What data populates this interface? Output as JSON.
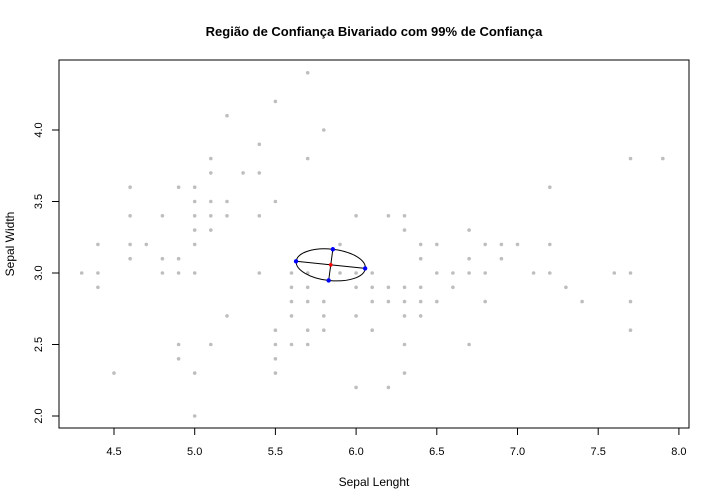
{
  "chart_data": {
    "type": "scatter",
    "title": "Região de Confiança Bivariado com 99% de Confiança",
    "xlabel": "Sepal Lenght",
    "ylabel": "Sepal Width",
    "xlim": [
      4.3,
      7.9
    ],
    "ylim": [
      2.0,
      4.4
    ],
    "xticks": [
      "4.5",
      "5.0",
      "5.5",
      "6.0",
      "6.5",
      "7.0",
      "7.5",
      "8.0"
    ],
    "yticks": [
      "2.0",
      "2.5",
      "3.0",
      "3.5",
      "4.0"
    ],
    "grid": false,
    "colors": {
      "points": "#bebebe",
      "ellipse": "#000000",
      "axis_points": "#0000ff",
      "center": "#ff0000",
      "axis_lines": "#000000"
    },
    "points": [
      [
        4.3,
        3.0
      ],
      [
        4.4,
        3.2
      ],
      [
        4.4,
        3.0
      ],
      [
        4.4,
        2.9
      ],
      [
        4.5,
        2.3
      ],
      [
        4.6,
        3.6
      ],
      [
        4.6,
        3.4
      ],
      [
        4.6,
        3.2
      ],
      [
        4.6,
        3.1
      ],
      [
        4.7,
        3.2
      ],
      [
        4.8,
        3.4
      ],
      [
        4.8,
        3.1
      ],
      [
        4.8,
        3.0
      ],
      [
        4.9,
        3.6
      ],
      [
        4.9,
        3.1
      ],
      [
        4.9,
        3.0
      ],
      [
        4.9,
        2.5
      ],
      [
        4.9,
        2.4
      ],
      [
        5.0,
        3.6
      ],
      [
        5.0,
        3.5
      ],
      [
        5.0,
        3.4
      ],
      [
        5.0,
        3.3
      ],
      [
        5.0,
        3.2
      ],
      [
        5.0,
        3.0
      ],
      [
        5.0,
        2.3
      ],
      [
        5.0,
        2.0
      ],
      [
        5.1,
        3.8
      ],
      [
        5.1,
        3.7
      ],
      [
        5.1,
        3.5
      ],
      [
        5.1,
        3.4
      ],
      [
        5.1,
        3.3
      ],
      [
        5.1,
        2.5
      ],
      [
        5.2,
        4.1
      ],
      [
        5.2,
        3.5
      ],
      [
        5.2,
        3.4
      ],
      [
        5.2,
        2.7
      ],
      [
        5.3,
        3.7
      ],
      [
        5.4,
        3.9
      ],
      [
        5.4,
        3.7
      ],
      [
        5.4,
        3.4
      ],
      [
        5.4,
        3.0
      ],
      [
        5.5,
        4.2
      ],
      [
        5.5,
        3.5
      ],
      [
        5.5,
        2.6
      ],
      [
        5.5,
        2.5
      ],
      [
        5.5,
        2.4
      ],
      [
        5.5,
        2.3
      ],
      [
        5.6,
        3.0
      ],
      [
        5.6,
        2.9
      ],
      [
        5.6,
        2.8
      ],
      [
        5.6,
        2.7
      ],
      [
        5.6,
        2.5
      ],
      [
        5.7,
        4.4
      ],
      [
        5.7,
        3.8
      ],
      [
        5.7,
        3.0
      ],
      [
        5.7,
        2.9
      ],
      [
        5.7,
        2.8
      ],
      [
        5.7,
        2.6
      ],
      [
        5.7,
        2.5
      ],
      [
        5.8,
        4.0
      ],
      [
        5.8,
        2.8
      ],
      [
        5.8,
        2.7
      ],
      [
        5.8,
        2.6
      ],
      [
        5.9,
        3.2
      ],
      [
        5.9,
        3.0
      ],
      [
        6.0,
        3.4
      ],
      [
        6.0,
        3.0
      ],
      [
        6.0,
        2.9
      ],
      [
        6.0,
        2.7
      ],
      [
        6.0,
        2.2
      ],
      [
        6.1,
        3.0
      ],
      [
        6.1,
        2.9
      ],
      [
        6.1,
        2.8
      ],
      [
        6.1,
        2.6
      ],
      [
        6.2,
        3.4
      ],
      [
        6.2,
        2.9
      ],
      [
        6.2,
        2.8
      ],
      [
        6.2,
        2.2
      ],
      [
        6.3,
        3.4
      ],
      [
        6.3,
        3.3
      ],
      [
        6.3,
        2.9
      ],
      [
        6.3,
        2.8
      ],
      [
        6.3,
        2.7
      ],
      [
        6.3,
        2.5
      ],
      [
        6.3,
        2.3
      ],
      [
        6.4,
        3.2
      ],
      [
        6.4,
        3.1
      ],
      [
        6.4,
        2.9
      ],
      [
        6.4,
        2.8
      ],
      [
        6.4,
        2.7
      ],
      [
        6.5,
        3.2
      ],
      [
        6.5,
        3.0
      ],
      [
        6.5,
        2.8
      ],
      [
        6.6,
        3.0
      ],
      [
        6.6,
        2.9
      ],
      [
        6.7,
        3.3
      ],
      [
        6.7,
        3.1
      ],
      [
        6.7,
        3.0
      ],
      [
        6.7,
        2.5
      ],
      [
        6.8,
        3.2
      ],
      [
        6.8,
        3.0
      ],
      [
        6.8,
        2.8
      ],
      [
        6.9,
        3.2
      ],
      [
        6.9,
        3.1
      ],
      [
        7.0,
        3.2
      ],
      [
        7.1,
        3.0
      ],
      [
        7.2,
        3.6
      ],
      [
        7.2,
        3.2
      ],
      [
        7.2,
        3.0
      ],
      [
        7.3,
        2.9
      ],
      [
        7.4,
        2.8
      ],
      [
        7.6,
        3.0
      ],
      [
        7.7,
        3.8
      ],
      [
        7.7,
        3.0
      ],
      [
        7.7,
        2.8
      ],
      [
        7.7,
        2.6
      ],
      [
        7.9,
        3.8
      ]
    ],
    "ellipse": {
      "center": [
        5.843,
        3.057
      ],
      "major_axis_ends": [
        [
          5.628,
          3.082
        ],
        [
          6.056,
          3.032
        ]
      ],
      "minor_axis_ends": [
        [
          5.83,
          2.948
        ],
        [
          5.856,
          3.166
        ]
      ]
    }
  }
}
